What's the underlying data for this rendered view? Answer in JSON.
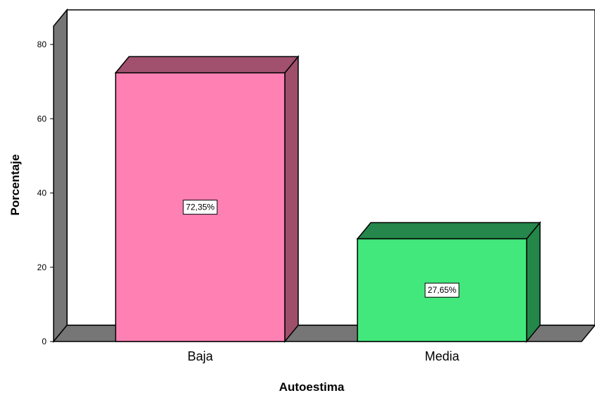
{
  "chart_data": {
    "type": "bar",
    "title": "",
    "xlabel": "Autoestima",
    "ylabel": "Porcentaje",
    "categories": [
      "Baja",
      "Media"
    ],
    "values": [
      72.35,
      27.65
    ],
    "data_labels": [
      "72,35%",
      "27,65%"
    ],
    "colors": {
      "front": [
        "#ff80b3",
        "#43e87c"
      ],
      "side": [
        "#9e506a",
        "#23874a"
      ],
      "top": [
        "#a1516e",
        "#25874b"
      ],
      "walls": "#767676",
      "wall_dark": "#606060"
    },
    "ylim": [
      0,
      85
    ],
    "yticks": [
      0,
      20,
      40,
      60,
      80
    ],
    "ytick_labels": [
      "0",
      "20",
      "40",
      "60",
      "80"
    ],
    "grid": false,
    "legend": "none",
    "style": "3d"
  }
}
